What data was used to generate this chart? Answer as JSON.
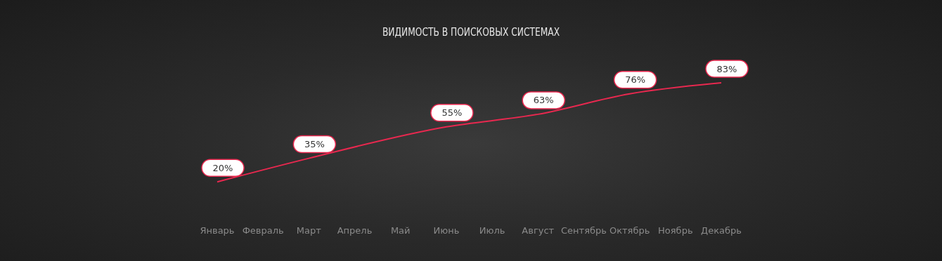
{
  "chart_data": {
    "type": "line",
    "title": "ВИДИМОСТЬ В ПОИСКОВЫХ СИСТЕМАХ",
    "categories": [
      "Январь",
      "Февраль",
      "Март",
      "Апрель",
      "Май",
      "Июнь",
      "Июль",
      "Август",
      "Сентябрь",
      "Октябрь",
      "Ноябрь",
      "Декабрь"
    ],
    "series": [
      {
        "color": "#e8284f",
        "values": [
          20,
          null,
          35,
          null,
          null,
          55,
          null,
          63,
          null,
          76,
          null,
          83
        ],
        "value_labels": [
          "20%",
          null,
          "35%",
          null,
          null,
          "55%",
          null,
          "63%",
          null,
          "76%",
          null,
          "83%"
        ]
      }
    ],
    "marker": "none",
    "line_style": "solid",
    "grid": false,
    "legend": false
  }
}
